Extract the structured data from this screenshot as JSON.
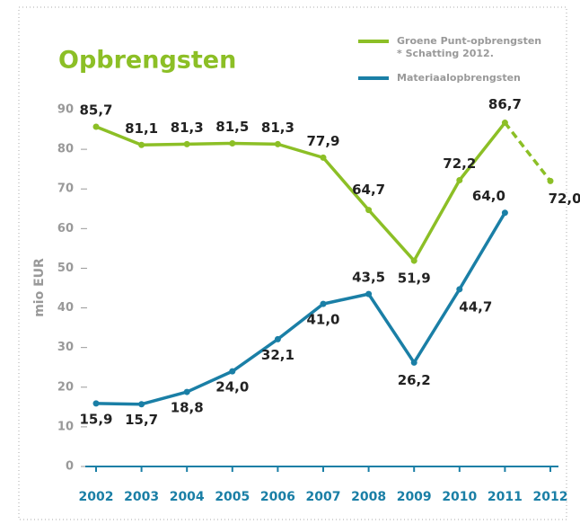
{
  "chart_data": {
    "type": "line",
    "title": "Opbrengsten",
    "ylabel": "mio EUR",
    "categories": [
      "2002",
      "2003",
      "2004",
      "2005",
      "2006",
      "2007",
      "2008",
      "2009",
      "2010",
      "2011",
      "2012"
    ],
    "series": [
      {
        "name": "Groene Punt-opbrengsten",
        "note": "* Schatting 2012.",
        "color": "#8cbf26",
        "dashed_last": true,
        "values": [
          85.7,
          81.1,
          81.3,
          81.5,
          81.3,
          77.9,
          64.7,
          51.9,
          72.2,
          86.7,
          72.0
        ],
        "value_labels": [
          "85,7",
          "81,1",
          "81,3",
          "81,5",
          "81,3",
          "77,9",
          "64,7",
          "51,9",
          "72,2",
          "86,7",
          "72,0*"
        ]
      },
      {
        "name": "Materiaalopbrengsten",
        "color": "#1a7fa6",
        "values": [
          15.9,
          15.7,
          18.8,
          24.0,
          32.1,
          41.0,
          43.5,
          26.2,
          44.7,
          64.0,
          null
        ],
        "value_labels": [
          "15,9",
          "15,7",
          "18,8",
          "24,0",
          "32,1",
          "41,0",
          "43,5",
          "26,2",
          "44,7",
          "64,0",
          null
        ]
      }
    ],
    "ylim": [
      0,
      90
    ],
    "yticks": [
      0,
      10,
      20,
      30,
      40,
      50,
      60,
      70,
      80,
      90
    ]
  }
}
